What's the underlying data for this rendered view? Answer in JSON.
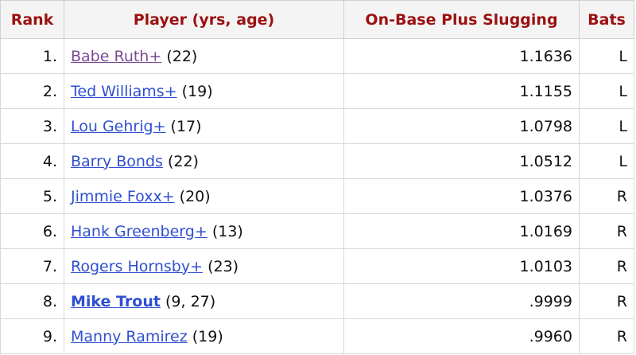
{
  "table": {
    "header": [
      "Rank",
      "Player (yrs, age)",
      "On-Base Plus Slugging",
      "Bats"
    ],
    "rows": [
      {
        "rank": "1.",
        "player": "Babe Ruth+",
        "detail": "(22)",
        "ops": "1.1636",
        "bats": "L"
      },
      {
        "rank": "2.",
        "player": "Ted Williams+",
        "detail": "(19)",
        "ops": "1.1155",
        "bats": "L"
      },
      {
        "rank": "3.",
        "player": "Lou Gehrig+",
        "detail": "(17)",
        "ops": "1.0798",
        "bats": "L"
      },
      {
        "rank": "4.",
        "player": "Barry Bonds",
        "detail": "(22)",
        "ops": "1.0512",
        "bats": "L"
      },
      {
        "rank": "5.",
        "player": "Jimmie Foxx+",
        "detail": "(20)",
        "ops": "1.0376",
        "bats": "R"
      },
      {
        "rank": "6.",
        "player": "Hank Greenberg+",
        "detail": "(13)",
        "ops": "1.0169",
        "bats": "R"
      },
      {
        "rank": "7.",
        "player": "Rogers Hornsby+",
        "detail": "(23)",
        "ops": "1.0103",
        "bats": "R"
      },
      {
        "rank": "8.",
        "player": "Mike Trout",
        "detail": "(9, 27)",
        "ops": ".9999",
        "bats": "R"
      },
      {
        "rank": "9.",
        "player": "Manny Ramirez",
        "detail": "(19)",
        "ops": ".9960",
        "bats": "R"
      }
    ]
  }
}
